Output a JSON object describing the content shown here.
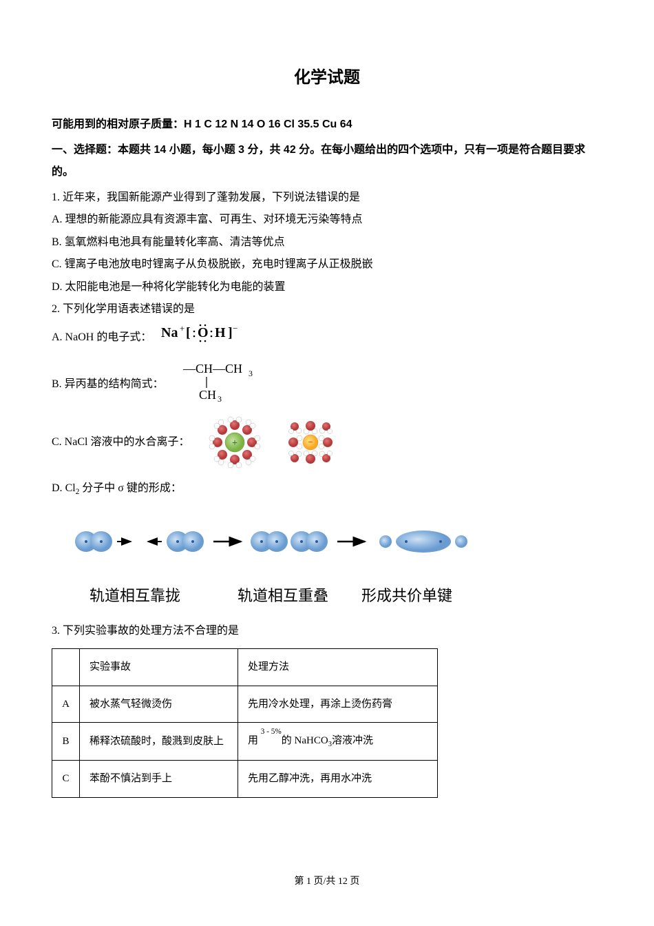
{
  "page": {
    "title": "化学试题",
    "atomic_masses": "可能用到的相对原子质量：H 1  C 12  N 14  O 16  Cl 35.5  Cu 64",
    "section_header": "一、选择题：本题共 14 小题，每小题 3 分，共 42 分。在每小题给出的四个选项中，只有一项是符合题目要求的。",
    "footer": "第 1 页/共 12 页"
  },
  "q1": {
    "stem": "1. 近年来，我国新能源产业得到了蓬勃发展，下列说法错误的是",
    "A": "A. 理想的新能源应具有资源丰富、可再生、对环境无污染等特点",
    "B": "B. 氢氧燃料电池具有能量转化率高、清洁等优点",
    "C": "C. 锂离子电池放电时锂离子从负极脱嵌，充电时锂离子从正极脱嵌",
    "D": "D. 太阳能电池是一种将化学能转化为电能的装置"
  },
  "q2": {
    "stem": "2. 下列化学用语表述错误的是",
    "A_prefix": "A. NaOH 的电子式：",
    "A_formula": "Na⁺[:Ö:H]⁻",
    "B_prefix": "B. 异丙基的结构简式：",
    "B_line1": "—CH—CH₃",
    "B_line2": "     |",
    "B_line3": "    CH₃",
    "C_prefix": "C. NaCl 溶液中的水合离子：",
    "D_text": "D. Cl₂ 分子中 σ 键的形成：",
    "orbital_label_1": "轨道相互靠拢",
    "orbital_label_2": "轨道相互重叠",
    "orbital_label_3": "形成共价单键"
  },
  "q3": {
    "stem": "3. 下列实验事故的处理方法不合理的是",
    "table": {
      "header_accident": "实验事故",
      "header_method": "处理方法",
      "rows": [
        {
          "label": "A",
          "accident": "被水蒸气轻微烫伤",
          "method": "先用冷水处理，再涂上烫伤药膏"
        },
        {
          "label": "B",
          "accident": "稀释浓硫酸时，酸溅到皮肤上",
          "method_html": "用 <span class='super-sub'><span class='sup'>3 - 5%</span><span class='sub'>&nbsp;</span></span>的 NaHCO<sub>3</sub>溶液冲洗"
        },
        {
          "label": "C",
          "accident": "苯酚不慎沾到手上",
          "method": "先用乙醇冲洗，再用水冲洗"
        }
      ]
    }
  },
  "colors": {
    "text": "#000000",
    "background": "#ffffff",
    "border": "#000000",
    "na_ion": "#7cb342",
    "cl_ion": "#f9a825",
    "water_o": "#b33a3a",
    "water_h": "#ffffff",
    "orbital_blue": "#7fa8d6",
    "orbital_dark": "#5b8bc4"
  }
}
